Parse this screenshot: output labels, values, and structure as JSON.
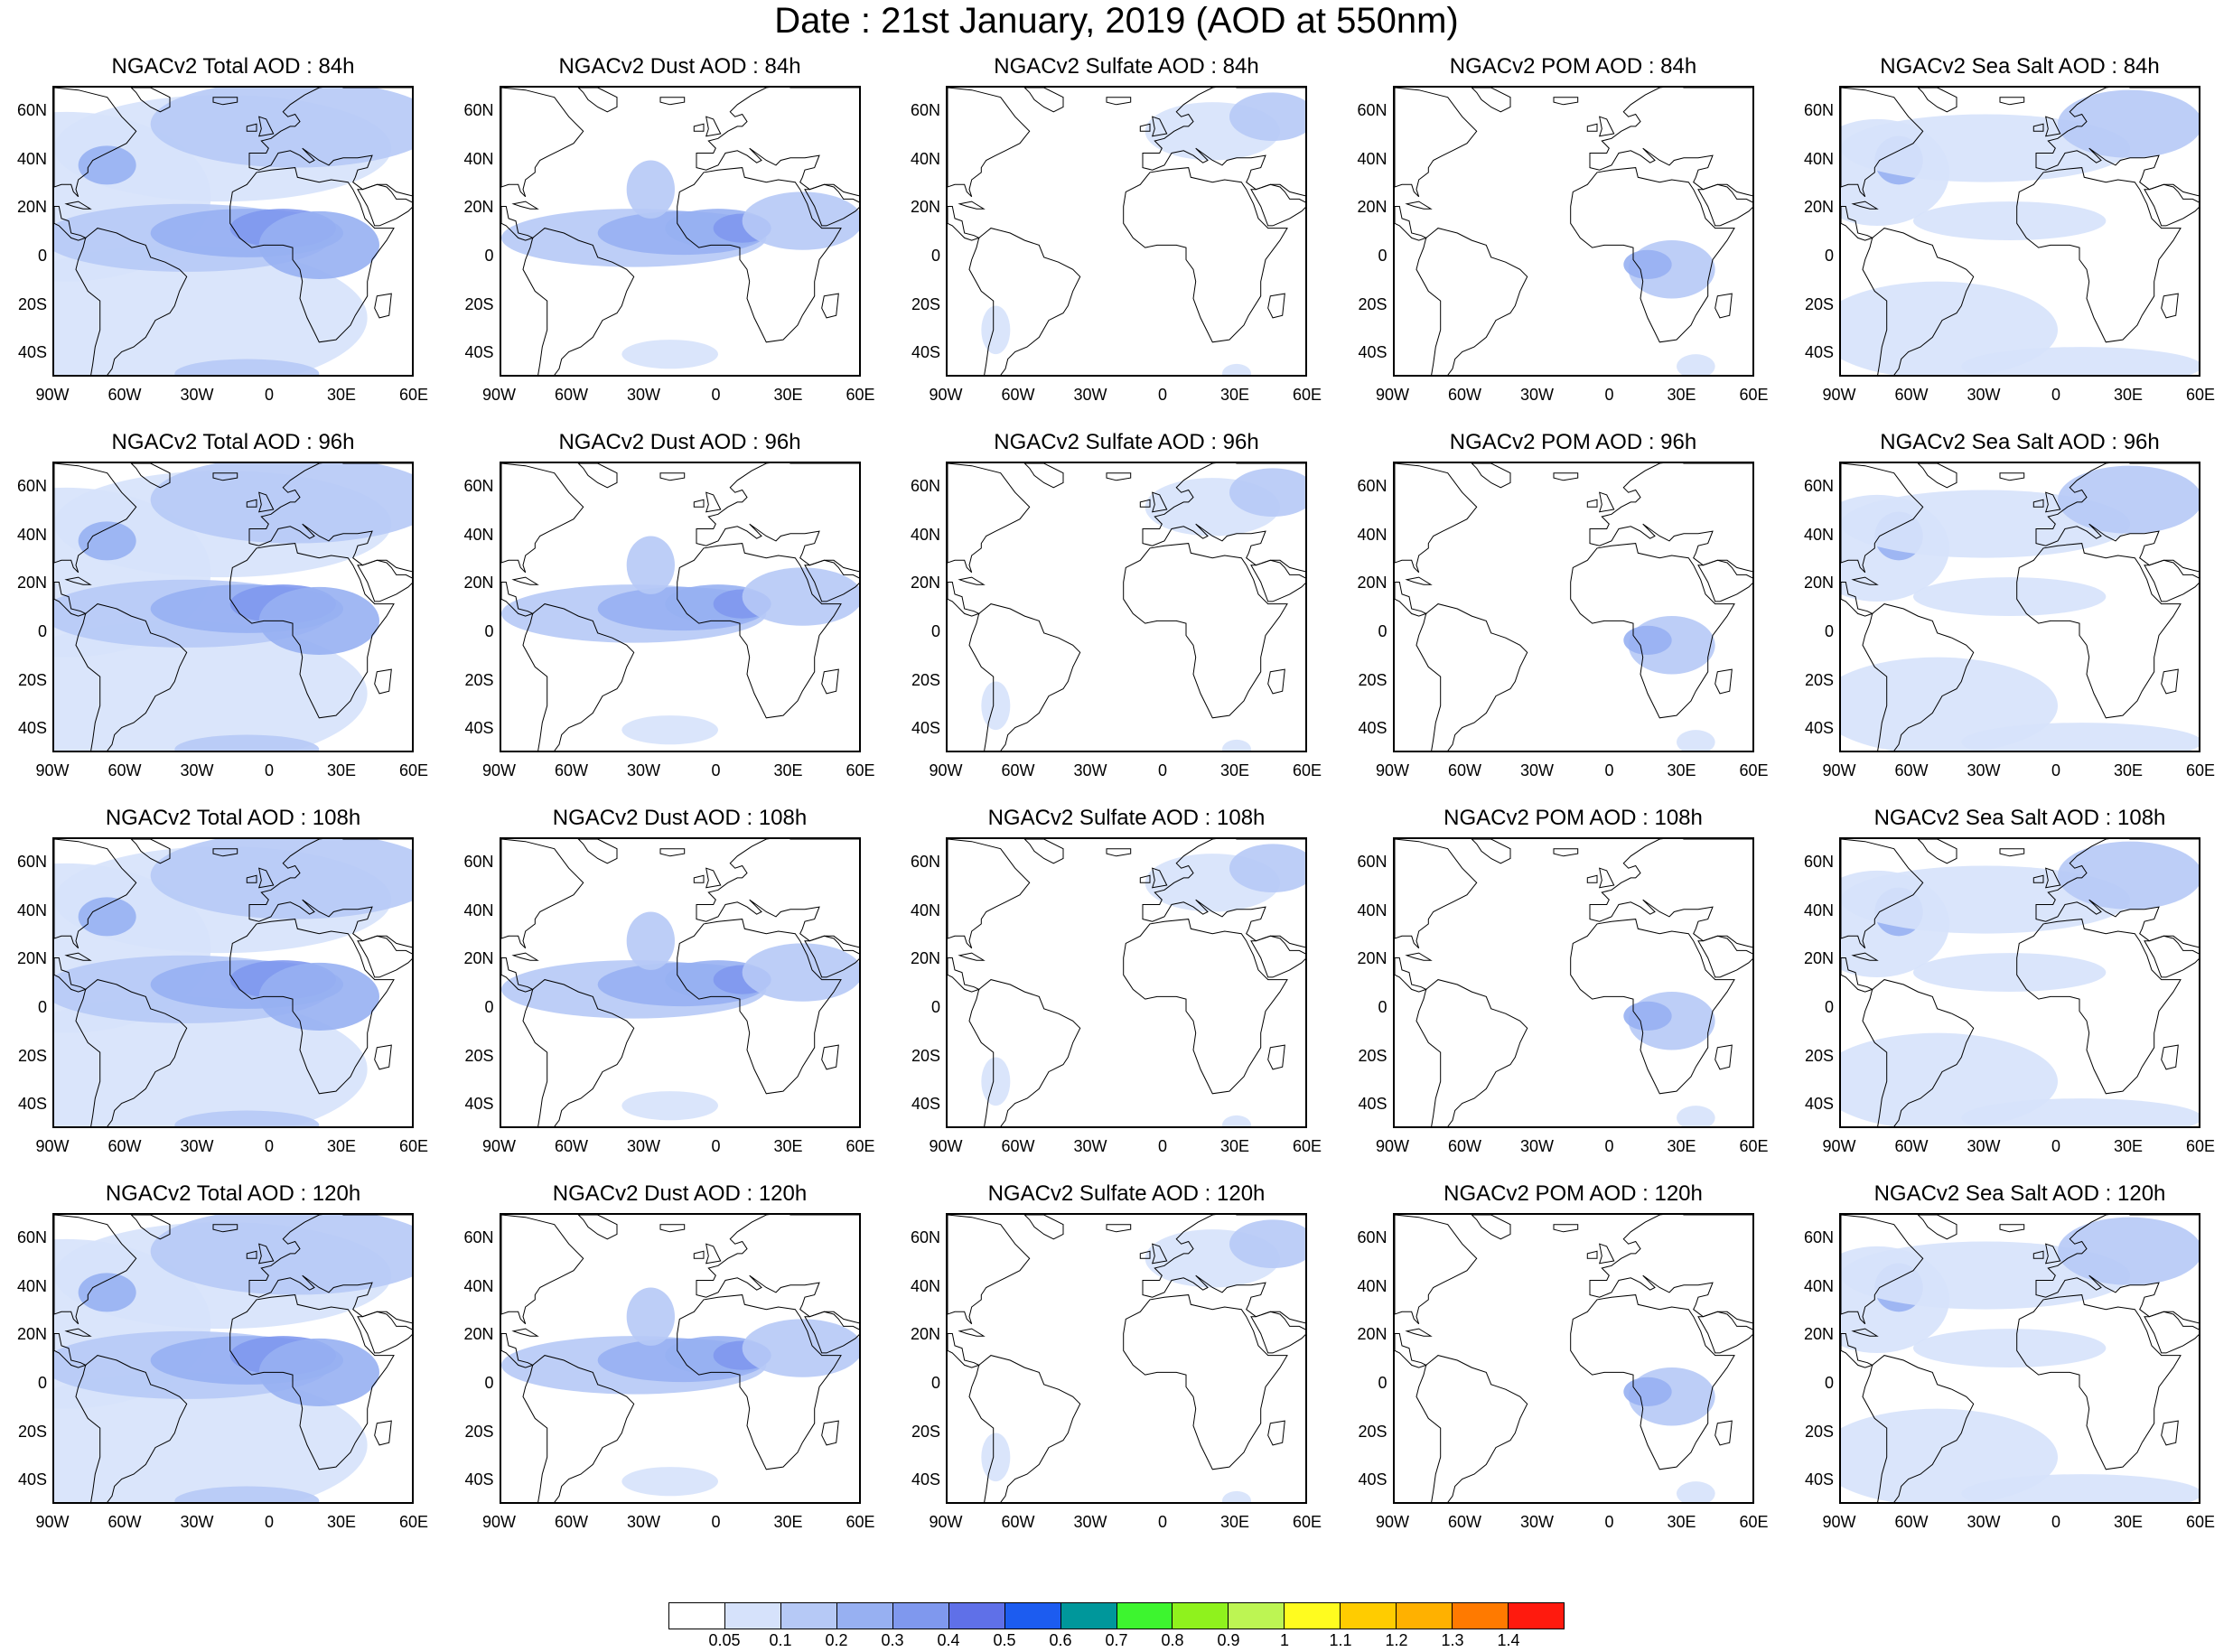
{
  "title": "Date : 21st January, 2019 (AOD at 550nm)",
  "lat_ticks": [
    "60N",
    "40N",
    "20N",
    "0",
    "20S",
    "40S"
  ],
  "lon_ticks": [
    "90W",
    "60W",
    "30W",
    "0",
    "30E",
    "60E"
  ],
  "rows": [
    {
      "panels": [
        {
          "title": "NGACv2 Total AOD : 84h",
          "type": "total"
        },
        {
          "title": "NGACv2 Dust AOD : 84h",
          "type": "dust"
        },
        {
          "title": "NGACv2 Sulfate AOD : 84h",
          "type": "sulfate"
        },
        {
          "title": "NGACv2 POM AOD : 84h",
          "type": "pom"
        },
        {
          "title": "NGACv2 Sea Salt AOD : 84h",
          "type": "seasalt"
        }
      ]
    },
    {
      "panels": [
        {
          "title": "NGACv2 Total AOD : 96h",
          "type": "total"
        },
        {
          "title": "NGACv2 Dust AOD : 96h",
          "type": "dust"
        },
        {
          "title": "NGACv2 Sulfate AOD : 96h",
          "type": "sulfate"
        },
        {
          "title": "NGACv2 POM AOD : 96h",
          "type": "pom"
        },
        {
          "title": "NGACv2 Sea Salt AOD : 96h",
          "type": "seasalt"
        }
      ]
    },
    {
      "panels": [
        {
          "title": "NGACv2 Total AOD : 108h",
          "type": "total"
        },
        {
          "title": "NGACv2 Dust AOD : 108h",
          "type": "dust"
        },
        {
          "title": "NGACv2 Sulfate AOD : 108h",
          "type": "sulfate"
        },
        {
          "title": "NGACv2 POM AOD : 108h",
          "type": "pom"
        },
        {
          "title": "NGACv2 Sea Salt AOD : 108h",
          "type": "seasalt"
        }
      ]
    },
    {
      "panels": [
        {
          "title": "NGACv2 Total AOD : 120h",
          "type": "total"
        },
        {
          "title": "NGACv2 Dust AOD : 120h",
          "type": "dust"
        },
        {
          "title": "NGACv2 Sulfate AOD : 120h",
          "type": "sulfate"
        },
        {
          "title": "NGACv2 POM AOD : 120h",
          "type": "pom"
        },
        {
          "title": "NGACv2 Sea Salt  AOD : 120h",
          "type": "seasalt"
        }
      ]
    }
  ],
  "colorbar": {
    "colors": [
      "#ffffff",
      "#d6e2fb",
      "#b6c9f6",
      "#97b0f2",
      "#7f98ee",
      "#5f70e8",
      "#1c5cf0",
      "#00979b",
      "#3df52f",
      "#8ff21d",
      "#bdf553",
      "#fffc1f",
      "#ffcc00",
      "#ffb100",
      "#ff7a00",
      "#ff1a0e"
    ],
    "labels": [
      "0.05",
      "0.1",
      "0.2",
      "0.3",
      "0.4",
      "0.5",
      "0.6",
      "0.7",
      "0.8",
      "0.9",
      "1",
      "1.1",
      "1.2",
      "1.3",
      "1.4"
    ]
  }
}
